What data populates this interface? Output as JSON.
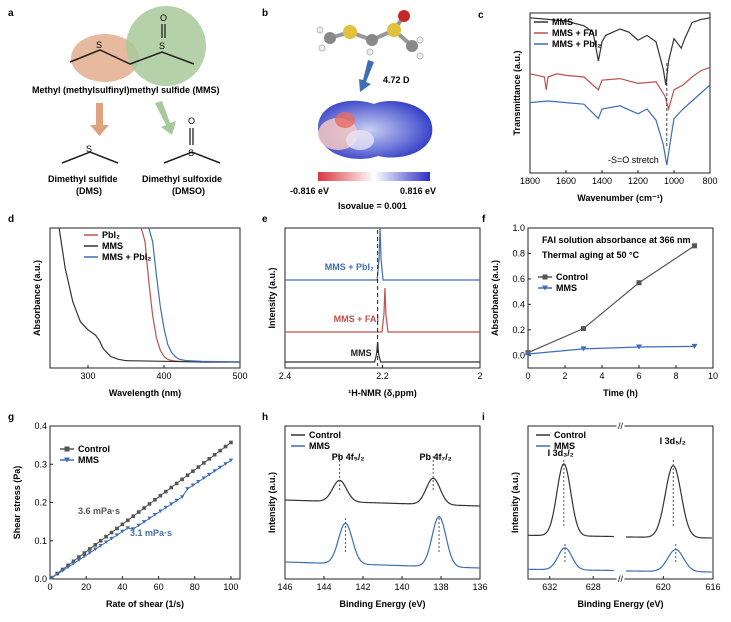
{
  "panels": {
    "a": {
      "letter": "a",
      "mms_label": "Methyl (methylsulfinyl)methyl sulfide (MMS)",
      "dms_label_1": "Dimethyl sulfide",
      "dms_label_2": "(DMS)",
      "dmso_label_1": "Dimethyl sulfoxide",
      "dmso_label_2": "(DMSO)",
      "s": "S",
      "o": "O"
    },
    "b": {
      "letter": "b",
      "dipole": "4.72 D",
      "min": "-0.816 eV",
      "max": "0.816 eV",
      "iso": "Isovalue = 0.001"
    }
  },
  "colors": {
    "black": "#333333",
    "red": "#c0504d",
    "blue": "#3d6eb5",
    "wedge": "#dfa27e",
    "green": "#a8c99a"
  },
  "chart_data": [
    {
      "letter": "c",
      "type": "line",
      "xlabel": "Wavenumber (cm⁻¹)",
      "ylabel": "Transmittance (a.u.)",
      "xlim": [
        1800,
        800
      ],
      "x_ticks": [
        1800,
        1600,
        1400,
        1200,
        1000,
        800
      ],
      "series": [
        {
          "name": "MMS",
          "color": "#333333",
          "x": [
            1800,
            1700,
            1600,
            1500,
            1450,
            1420,
            1400,
            1380,
            1300,
            1250,
            1200,
            1150,
            1100,
            1060,
            1045,
            1030,
            1000,
            960,
            940,
            900,
            850,
            800
          ],
          "y": [
            0.97,
            0.96,
            0.95,
            0.92,
            0.88,
            0.7,
            0.82,
            0.86,
            0.9,
            0.88,
            0.83,
            0.86,
            0.82,
            0.65,
            0.55,
            0.7,
            0.84,
            0.78,
            0.84,
            0.94,
            0.96,
            0.97
          ]
        },
        {
          "name": "MMS + FAI",
          "color": "#c0504d",
          "x": [
            1800,
            1720,
            1710,
            1700,
            1650,
            1600,
            1500,
            1420,
            1400,
            1300,
            1200,
            1100,
            1050,
            1030,
            1000,
            950,
            900,
            850,
            800
          ],
          "y": [
            0.62,
            0.6,
            0.52,
            0.6,
            0.62,
            0.61,
            0.6,
            0.52,
            0.58,
            0.59,
            0.56,
            0.57,
            0.48,
            0.4,
            0.52,
            0.55,
            0.6,
            0.64,
            0.66
          ]
        },
        {
          "name": "MMS + PbI₂",
          "color": "#3d6eb5",
          "x": [
            1800,
            1700,
            1600,
            1500,
            1420,
            1400,
            1300,
            1200,
            1150,
            1100,
            1060,
            1040,
            1020,
            1000,
            950,
            900,
            850,
            800
          ],
          "y": [
            0.44,
            0.45,
            0.44,
            0.43,
            0.34,
            0.4,
            0.42,
            0.37,
            0.4,
            0.33,
            0.18,
            0.05,
            0.2,
            0.34,
            0.4,
            0.45,
            0.5,
            0.55
          ]
        }
      ],
      "annotation": "-S=O stretch"
    },
    {
      "letter": "d",
      "type": "line",
      "xlabel": "Wavelength (nm)",
      "ylabel": "Absorbance (a.u.)",
      "xlim": [
        250,
        500
      ],
      "x_ticks": [
        300,
        400,
        500
      ],
      "series": [
        {
          "name": "PbI₂",
          "color": "#c0504d",
          "x": [
            370,
            375,
            380,
            385,
            390,
            395,
            400,
            405,
            410,
            420,
            450,
            500
          ],
          "y": [
            1.1,
            0.9,
            0.6,
            0.35,
            0.18,
            0.09,
            0.04,
            0.02,
            0.01,
            0.005,
            0,
            0
          ]
        },
        {
          "name": "MMS",
          "color": "#333333",
          "x": [
            262,
            270,
            280,
            290,
            300,
            310,
            315,
            320,
            330,
            340,
            350,
            400,
            450,
            500
          ],
          "y": [
            1.1,
            0.7,
            0.45,
            0.3,
            0.24,
            0.2,
            0.16,
            0.1,
            0.04,
            0.02,
            0.01,
            0.005,
            0,
            0
          ]
        },
        {
          "name": "MMS + PbI₂",
          "color": "#3d6eb5",
          "x": [
            380,
            385,
            390,
            395,
            400,
            405,
            410,
            415,
            420,
            430,
            450,
            500
          ],
          "y": [
            1.1,
            0.9,
            0.65,
            0.42,
            0.25,
            0.13,
            0.07,
            0.04,
            0.02,
            0.01,
            0.005,
            0
          ]
        }
      ]
    },
    {
      "letter": "e",
      "type": "line",
      "xlabel": "¹H-NMR (δ,ppm)",
      "ylabel": "Intensity (a.u.)",
      "xlim": [
        2.4,
        2.0
      ],
      "x_ticks": [
        2.4,
        2.2,
        2.0
      ],
      "series": [
        {
          "name": "MMS + PbI₂",
          "color": "#3d6eb5",
          "peak": 2.205
        },
        {
          "name": "MMS + FAI",
          "color": "#c0504d",
          "peak": 2.195
        },
        {
          "name": "MMS",
          "color": "#333333",
          "peak": 2.21
        }
      ]
    },
    {
      "letter": "f",
      "type": "line",
      "xlabel": "Time (h)",
      "ylabel": "Absorbance (a.u.)",
      "xlim": [
        0,
        10
      ],
      "ylim": [
        -0.1,
        1.0
      ],
      "x_ticks": [
        0,
        2,
        4,
        6,
        8,
        10
      ],
      "y_ticks": [
        0.0,
        0.2,
        0.4,
        0.6,
        0.8,
        1.0
      ],
      "notes": [
        "FAI solution absorbance at 366 nm",
        "Thermal aging at 50 °C"
      ],
      "series": [
        {
          "name": "Control",
          "color": "#555555",
          "marker": "square",
          "x": [
            0,
            3,
            6,
            9
          ],
          "y": [
            0.02,
            0.21,
            0.57,
            0.86
          ]
        },
        {
          "name": "MMS",
          "color": "#3d6eb5",
          "marker": "triangle",
          "x": [
            0,
            3,
            6,
            9
          ],
          "y": [
            0.01,
            0.05,
            0.065,
            0.07
          ]
        }
      ]
    },
    {
      "letter": "g",
      "type": "scatter",
      "xlabel": "Rate of shear (1/s)",
      "ylabel": "Shear stress (Pa)",
      "xlim": [
        0,
        105
      ],
      "ylim": [
        0,
        0.4
      ],
      "x_ticks": [
        0,
        20,
        40,
        60,
        80,
        100
      ],
      "y_ticks": [
        0.0,
        0.1,
        0.2,
        0.3,
        0.4
      ],
      "annotations": [
        "3.6 mPa·s",
        "3.1 mPa·s"
      ],
      "series": [
        {
          "name": "Control",
          "color": "#555555",
          "marker": "square",
          "slope": 0.00357
        },
        {
          "name": "MMS",
          "color": "#3d6eb5",
          "marker": "triangle",
          "slope": 0.0031
        }
      ]
    },
    {
      "letter": "h",
      "type": "line",
      "xlabel": "Binding Energy (eV)",
      "ylabel": "Intensity (a.u.)",
      "xlim": [
        146,
        136
      ],
      "x_ticks": [
        146,
        144,
        142,
        140,
        138,
        136
      ],
      "peak_labels": [
        "Pb 4f₅/₂",
        "Pb 4f₇/₂"
      ],
      "series": [
        {
          "name": "Control",
          "color": "#333333",
          "peaks": [
            143.2,
            138.4
          ]
        },
        {
          "name": "MMS",
          "color": "#3d6eb5",
          "peaks": [
            142.9,
            138.1
          ]
        }
      ]
    },
    {
      "letter": "i",
      "type": "line",
      "xlabel": "Binding Energy (eV)",
      "ylabel": "Intensity (a.u.)",
      "x_ticks": [
        632,
        628,
        620,
        616
      ],
      "peak_labels": [
        "I 3d₃/₂",
        "I 3d₅/₂"
      ],
      "series": [
        {
          "name": "Control",
          "color": "#333333",
          "peaks": [
            630.7,
            619.2
          ]
        },
        {
          "name": "MMS",
          "color": "#3d6eb5",
          "peaks": [
            630.6,
            619.0
          ]
        }
      ]
    }
  ]
}
